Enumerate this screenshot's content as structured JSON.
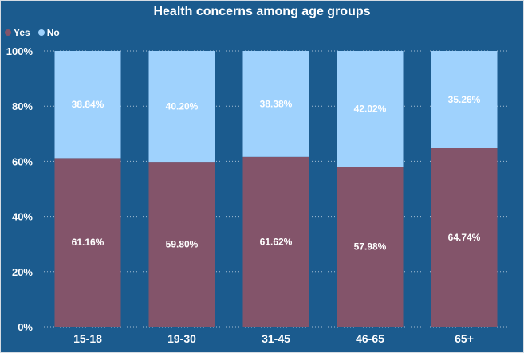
{
  "chart_data": {
    "type": "bar",
    "stacked": true,
    "title": "Health concerns among age groups",
    "xlabel": "",
    "ylabel": "",
    "categories": [
      "15-18",
      "19-30",
      "31-45",
      "46-65",
      "65+"
    ],
    "series": [
      {
        "name": "Yes",
        "color": "#83546a",
        "values": [
          61.16,
          59.8,
          61.62,
          57.98,
          64.74
        ],
        "labels": [
          "61.16%",
          "59.80%",
          "61.62%",
          "57.98%",
          "64.74%"
        ]
      },
      {
        "name": "No",
        "color": "#9fd2fd",
        "values": [
          38.84,
          40.2,
          38.38,
          42.02,
          35.26
        ],
        "labels": [
          "38.84%",
          "40.20%",
          "38.38%",
          "42.02%",
          "35.26%"
        ]
      }
    ],
    "ylim": [
      0,
      100
    ],
    "yticks": [
      0,
      20,
      40,
      60,
      80,
      100
    ],
    "ytick_labels": [
      "0%",
      "20%",
      "40%",
      "60%",
      "80%",
      "100%"
    ],
    "grid": true,
    "legend_position": "top-left",
    "background": "#1b5b8e"
  }
}
